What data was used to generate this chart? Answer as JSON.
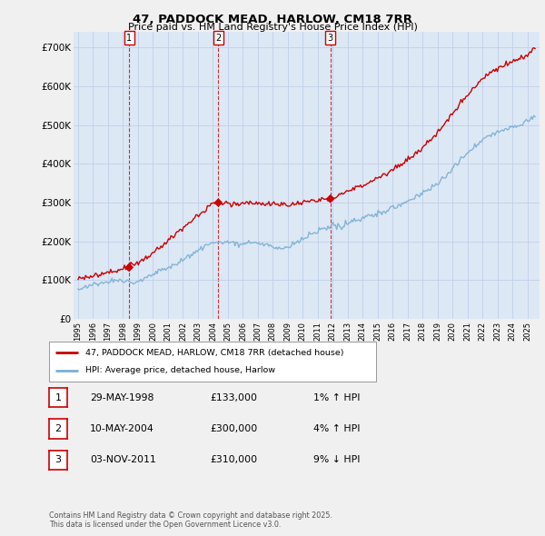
{
  "title1": "47, PADDOCK MEAD, HARLOW, CM18 7RR",
  "title2": "Price paid vs. HM Land Registry's House Price Index (HPI)",
  "ylabel_ticks": [
    "£0",
    "£100K",
    "£200K",
    "£300K",
    "£400K",
    "£500K",
    "£600K",
    "£700K"
  ],
  "ytick_values": [
    0,
    100000,
    200000,
    300000,
    400000,
    500000,
    600000,
    700000
  ],
  "ylim": [
    0,
    740000
  ],
  "xlim_start": 1994.7,
  "xlim_end": 2025.8,
  "legend_line1": "47, PADDOCK MEAD, HARLOW, CM18 7RR (detached house)",
  "legend_line2": "HPI: Average price, detached house, Harlow",
  "sale1_date": 1998.41,
  "sale1_price": 133000,
  "sale2_date": 2004.36,
  "sale2_price": 300000,
  "sale3_date": 2011.84,
  "sale3_price": 310000,
  "table_entries": [
    {
      "num": "1",
      "date": "29-MAY-1998",
      "price": "£133,000",
      "hpi": "1% ↑ HPI"
    },
    {
      "num": "2",
      "date": "10-MAY-2004",
      "price": "£300,000",
      "hpi": "4% ↑ HPI"
    },
    {
      "num": "3",
      "date": "03-NOV-2011",
      "price": "£310,000",
      "hpi": "9% ↓ HPI"
    }
  ],
  "footnote1": "Contains HM Land Registry data © Crown copyright and database right 2025.",
  "footnote2": "This data is licensed under the Open Government Licence v3.0.",
  "line_color_red": "#cc0000",
  "line_color_blue": "#7aafd4",
  "bg_color": "#f0f0f0",
  "plot_bg_color": "#dde8f5",
  "grid_color": "#c0d0e8",
  "dashed_color": "#cc0000"
}
